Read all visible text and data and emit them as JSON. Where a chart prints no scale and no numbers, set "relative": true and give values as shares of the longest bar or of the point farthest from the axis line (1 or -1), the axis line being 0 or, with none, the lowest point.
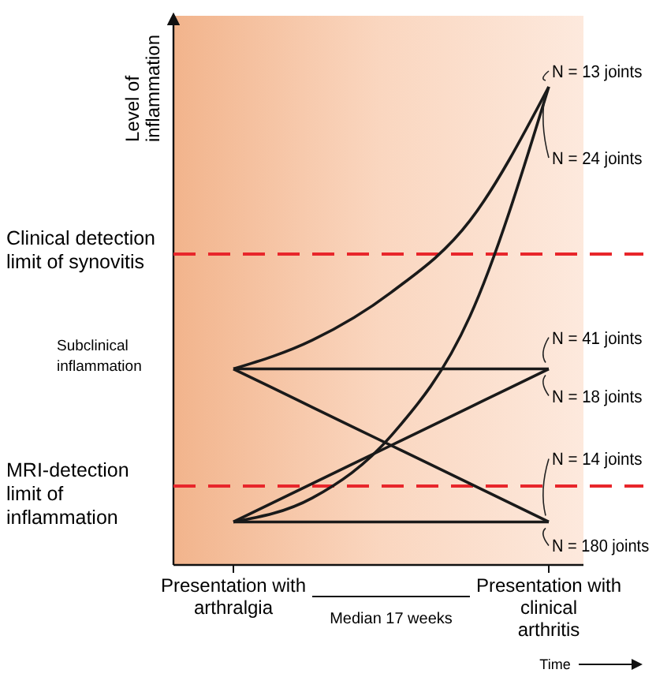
{
  "chart_data": {
    "type": "line",
    "relative": true,
    "ylabel": "Level of inflammation",
    "xlabel": "Time",
    "categories": [
      "Presentation with arthralgia",
      null,
      null,
      null,
      "Presentation with clinical arthritis"
    ],
    "marker": "none",
    "line_style": "solid",
    "series": [
      {
        "name": "N = 13 joints",
        "color": "#1a1a1a",
        "values": [
          0.41,
          0.47,
          0.57,
          0.72,
          1
        ]
      },
      {
        "name": "N = 24 joints",
        "color": "#1a1a1a",
        "values": [
          0.09,
          0.14,
          0.27,
          0.52,
          1
        ]
      },
      {
        "name": "N = 41 joints",
        "color": "#1a1a1a",
        "values": [
          0.41,
          0.41,
          0.41,
          0.41,
          0.41
        ]
      },
      {
        "name": "N = 18 joints",
        "color": "#1a1a1a",
        "values": [
          0.09,
          0.17,
          0.25,
          0.33,
          0.41
        ]
      },
      {
        "name": "N = 14 joints",
        "color": "#1a1a1a",
        "values": [
          0.41,
          0.33,
          0.25,
          0.17,
          0.09
        ]
      },
      {
        "name": "N = 180 joints",
        "color": "#1a1a1a",
        "values": [
          0.09,
          0.09,
          0.09,
          0.09,
          0.09
        ]
      }
    ],
    "ref_lines": [
      {
        "axis": "y",
        "value": 0.65,
        "label": "Clinical detection limit of synovitis",
        "color": "#e8262b",
        "line_style": "dashed"
      },
      {
        "axis": "y",
        "value": 0.165,
        "label": "MRI-detection limit of inflammation",
        "color": "#e8262b",
        "line_style": "dashed"
      }
    ],
    "legend": "right",
    "annotations": [
      "Subclinical inflammation",
      "Median 17 weeks"
    ]
  }
}
